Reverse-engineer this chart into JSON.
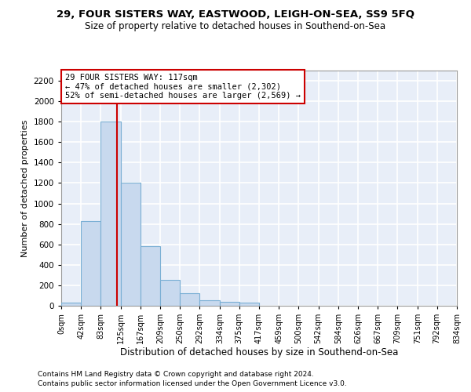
{
  "title1": "29, FOUR SISTERS WAY, EASTWOOD, LEIGH-ON-SEA, SS9 5FQ",
  "title2": "Size of property relative to detached houses in Southend-on-Sea",
  "xlabel": "Distribution of detached houses by size in Southend-on-Sea",
  "ylabel": "Number of detached properties",
  "footnote1": "Contains HM Land Registry data © Crown copyright and database right 2024.",
  "footnote2": "Contains public sector information licensed under the Open Government Licence v3.0.",
  "annotation_line1": "29 FOUR SISTERS WAY: 117sqm",
  "annotation_line2": "← 47% of detached houses are smaller (2,302)",
  "annotation_line3": "52% of semi-detached houses are larger (2,569) →",
  "property_size": 117,
  "bar_edges": [
    0,
    42,
    83,
    125,
    167,
    209,
    250,
    292,
    334,
    375,
    417,
    459,
    500,
    542,
    584,
    626,
    667,
    709,
    751,
    792,
    834
  ],
  "bar_heights": [
    30,
    830,
    1800,
    1200,
    580,
    255,
    120,
    50,
    40,
    30,
    0,
    0,
    0,
    0,
    0,
    0,
    0,
    0,
    0,
    0
  ],
  "bar_color": "#c8d9ee",
  "bar_edge_color": "#7aafd4",
  "red_line_color": "#cc0000",
  "background_color": "#e8eef8",
  "grid_color": "#ffffff",
  "ylim": [
    0,
    2300
  ],
  "yticks": [
    0,
    200,
    400,
    600,
    800,
    1000,
    1200,
    1400,
    1600,
    1800,
    2000,
    2200
  ]
}
